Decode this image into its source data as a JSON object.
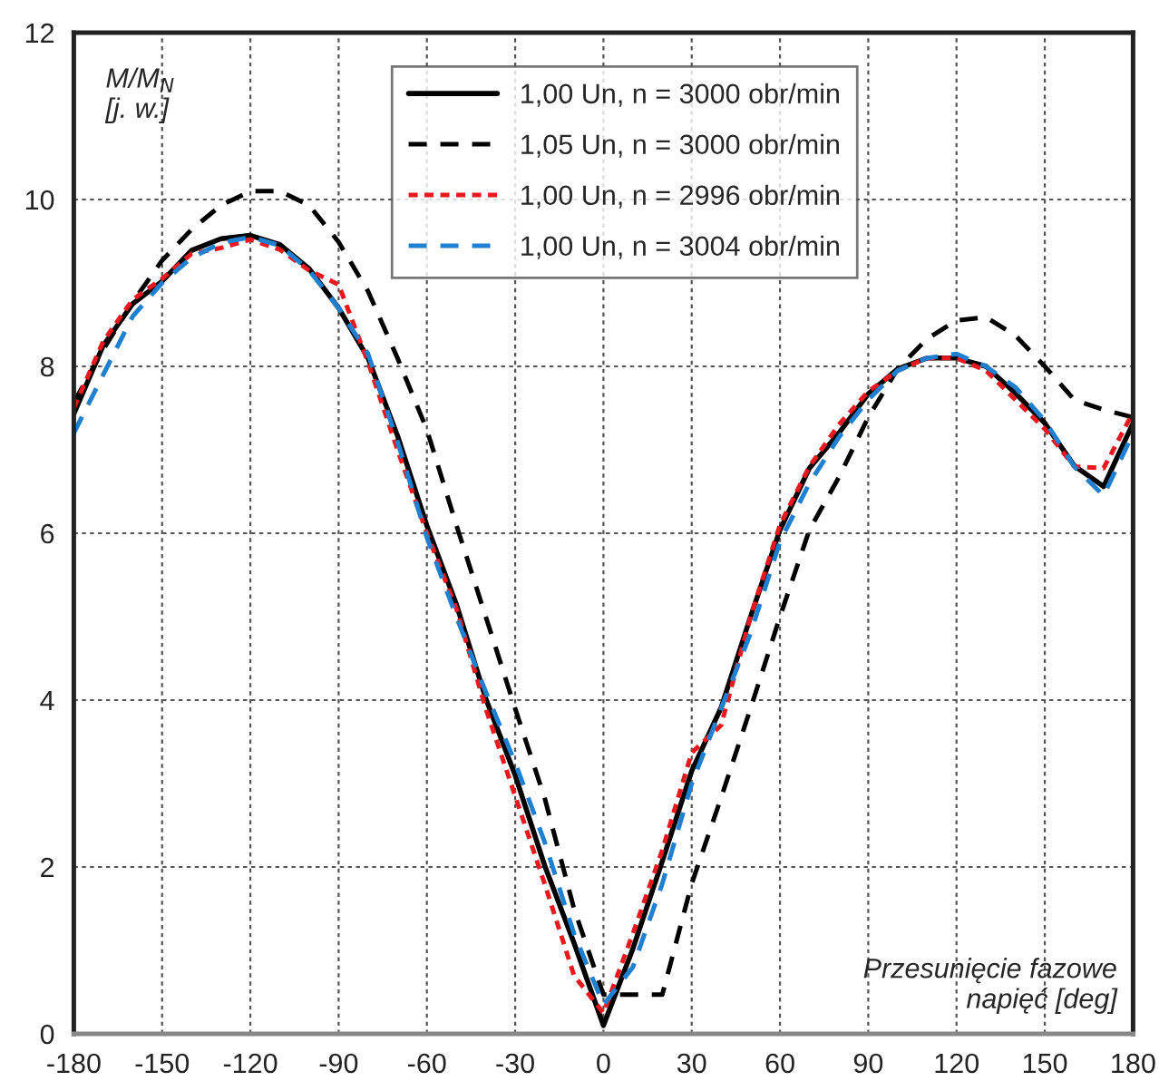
{
  "chart_data": {
    "type": "line",
    "xlabel": "Przesunięcie fazowe\nnapięć [deg]",
    "ylabel": "M/M$_{N}$\n[j. w.]",
    "x": [
      -180,
      -170,
      -160,
      -150,
      -140,
      -130,
      -120,
      -110,
      -100,
      -90,
      -80,
      -70,
      -60,
      -50,
      -40,
      -30,
      -20,
      -10,
      0,
      10,
      20,
      30,
      40,
      50,
      60,
      70,
      80,
      90,
      100,
      110,
      120,
      130,
      140,
      150,
      160,
      170,
      180
    ],
    "series": [
      {
        "name": "1,00 Un, n = 3000 obr/min",
        "color": "#000000",
        "line_style": "solid",
        "values": [
          7.43,
          8.25,
          8.75,
          9.02,
          9.39,
          9.53,
          9.57,
          9.46,
          9.17,
          8.7,
          8.1,
          7.17,
          6.09,
          5.15,
          4.02,
          3.1,
          2.02,
          1.09,
          0.1,
          1.02,
          2.07,
          3.15,
          3.91,
          5.0,
          6.04,
          6.78,
          7.2,
          7.67,
          7.97,
          8.1,
          8.1,
          8.0,
          7.68,
          7.32,
          6.81,
          6.56,
          7.32
        ]
      },
      {
        "name": "1,05 Un, n = 3000 obr/min",
        "color": "#000000",
        "line_style": "dashed",
        "values": [
          7.57,
          8.2,
          8.77,
          9.27,
          9.64,
          9.93,
          10.1,
          10.1,
          9.93,
          9.49,
          8.9,
          8.1,
          7.24,
          6.1,
          5.0,
          3.9,
          2.83,
          1.5,
          0.47,
          0.47,
          0.47,
          1.8,
          2.83,
          3.9,
          5.0,
          6.04,
          6.67,
          7.39,
          7.97,
          8.33,
          8.55,
          8.59,
          8.37,
          8.0,
          7.6,
          7.48,
          7.39
        ]
      },
      {
        "name": "1,00 Un, n = 2996 obr/min",
        "color": "#e8191e",
        "line_style": "dotted",
        "values": [
          7.5,
          8.3,
          8.8,
          9.05,
          9.35,
          9.42,
          9.52,
          9.4,
          9.15,
          8.98,
          8.05,
          7.0,
          6.0,
          5.1,
          3.9,
          2.85,
          1.8,
          0.7,
          0.25,
          1.2,
          2.2,
          3.37,
          3.7,
          5.0,
          6.1,
          6.8,
          7.3,
          7.7,
          7.95,
          8.1,
          8.1,
          7.95,
          7.6,
          7.25,
          6.8,
          6.78,
          7.45
        ]
      },
      {
        "name": "1,00 Un, n = 3004 obr/min",
        "color": "#1f7fd0",
        "line_style": "dashed",
        "values": [
          7.2,
          7.9,
          8.6,
          9.0,
          9.3,
          9.48,
          9.55,
          9.45,
          9.15,
          8.7,
          8.15,
          7.1,
          5.95,
          5.0,
          4.1,
          3.25,
          2.3,
          1.2,
          0.35,
          0.8,
          1.8,
          3.0,
          3.9,
          4.8,
          5.9,
          6.6,
          7.15,
          7.6,
          7.95,
          8.1,
          8.15,
          8.0,
          7.75,
          7.35,
          6.8,
          6.45,
          7.2
        ]
      }
    ],
    "xlim": [
      -180,
      180
    ],
    "xticks": [
      -180,
      -150,
      -120,
      -90,
      -60,
      -30,
      0,
      30,
      60,
      90,
      120,
      150,
      180
    ],
    "ylim": [
      0,
      12
    ],
    "yticks": [
      0,
      2,
      4,
      6,
      8,
      10,
      12
    ],
    "grid": true,
    "legend": "top",
    "marker": "none"
  }
}
